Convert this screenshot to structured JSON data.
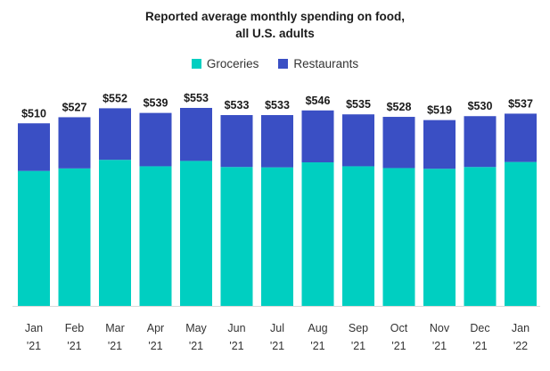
{
  "chart_data": {
    "type": "bar",
    "stacked": true,
    "title_line1": "Reported average monthly spending on food,",
    "title_line2": "all U.S. adults",
    "categories": [
      {
        "month": "Jan",
        "year": "'21"
      },
      {
        "month": "Feb",
        "year": "'21"
      },
      {
        "month": "Mar",
        "year": "'21"
      },
      {
        "month": "Apr",
        "year": "'21"
      },
      {
        "month": "May",
        "year": "'21"
      },
      {
        "month": "Jun",
        "year": "'21"
      },
      {
        "month": "Jul",
        "year": "'21"
      },
      {
        "month": "Aug",
        "year": "'21"
      },
      {
        "month": "Sep",
        "year": "'21"
      },
      {
        "month": "Oct",
        "year": "'21"
      },
      {
        "month": "Nov",
        "year": "'21"
      },
      {
        "month": "Dec",
        "year": "'21"
      },
      {
        "month": "Jan",
        "year": "'22"
      }
    ],
    "series": [
      {
        "name": "Groceries",
        "color": "#00cfc1",
        "values": [
          377,
          384,
          408,
          390,
          405,
          388,
          387,
          401,
          390,
          385,
          383,
          388,
          402
        ]
      },
      {
        "name": "Restaurants",
        "color": "#3a4fc4",
        "values": [
          133,
          143,
          144,
          149,
          148,
          145,
          146,
          145,
          145,
          143,
          136,
          142,
          135
        ]
      }
    ],
    "totals": [
      "$510",
      "$527",
      "$552",
      "$539",
      "$553",
      "$533",
      "$533",
      "$546",
      "$535",
      "$528",
      "$519",
      "$530",
      "$537"
    ],
    "ylim": [
      0,
      553
    ],
    "xlabel": "",
    "ylabel": "",
    "grid": false,
    "legend_position": "top-center"
  }
}
